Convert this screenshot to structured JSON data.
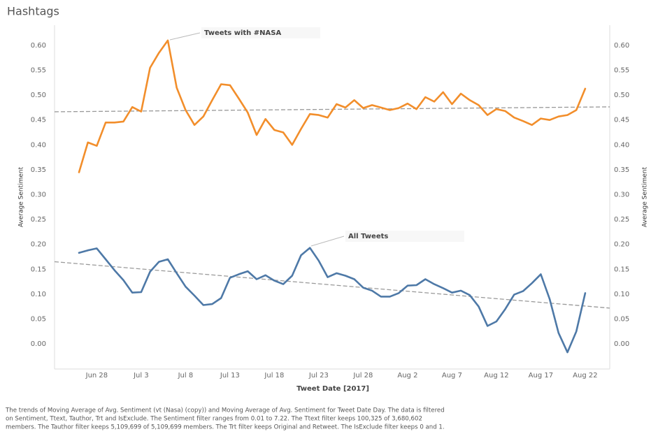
{
  "chart_data": {
    "type": "line",
    "title": "Hashtags",
    "x_label": "Tweet Date [2017]",
    "y_label": "Average Sentiment",
    "y2_label": "Average Sentiment",
    "categories": [
      null,
      null,
      "Jun 28",
      null,
      null,
      null,
      null,
      "Jul 3",
      null,
      null,
      null,
      null,
      "Jul 8",
      null,
      null,
      null,
      null,
      "Jul 13",
      null,
      null,
      null,
      null,
      "Jul 18",
      null,
      null,
      null,
      null,
      "Jul 23",
      null,
      null,
      null,
      null,
      "Jul 28",
      null,
      null,
      null,
      null,
      "Aug 2",
      null,
      null,
      null,
      null,
      "Aug 7",
      null,
      null,
      null,
      null,
      "Aug 12",
      null,
      null,
      null,
      null,
      "Aug 17",
      null,
      null,
      null,
      null,
      "Aug 22"
    ],
    "series": [
      {
        "name": "Tweets with #NASA",
        "color": "#f28e2b",
        "axis": "y2",
        "values": [
          0.345,
          0.405,
          0.398,
          0.445,
          0.445,
          0.447,
          0.476,
          0.467,
          0.555,
          0.585,
          0.61,
          0.515,
          0.47,
          0.44,
          0.457,
          0.49,
          0.522,
          0.52,
          0.493,
          0.465,
          0.42,
          0.452,
          0.43,
          0.425,
          0.4,
          0.432,
          0.462,
          0.46,
          0.455,
          0.482,
          0.475,
          0.49,
          0.474,
          0.48,
          0.475,
          0.47,
          0.474,
          0.483,
          0.472,
          0.496,
          0.487,
          0.506,
          0.482,
          0.503,
          0.49,
          0.48,
          0.46,
          0.472,
          0.468,
          0.455,
          0.448,
          0.44,
          0.453,
          0.45,
          0.457,
          0.46,
          0.47,
          0.513
        ],
        "trend": [
          0.467,
          0.476
        ]
      },
      {
        "name": "All Tweets",
        "color": "#4e79a7",
        "values": [
          0.183,
          0.188,
          0.192,
          0.17,
          0.148,
          0.128,
          0.103,
          0.104,
          0.145,
          0.165,
          0.17,
          0.142,
          0.115,
          0.097,
          0.078,
          0.08,
          0.092,
          0.133,
          0.14,
          0.146,
          0.13,
          0.138,
          0.127,
          0.12,
          0.137,
          0.178,
          0.193,
          0.167,
          0.134,
          0.142,
          0.137,
          0.13,
          0.113,
          0.107,
          0.095,
          0.095,
          0.102,
          0.117,
          0.118,
          0.13,
          0.12,
          0.112,
          0.103,
          0.107,
          0.098,
          0.075,
          0.036,
          0.045,
          0.07,
          0.099,
          0.106,
          0.122,
          0.14,
          0.09,
          0.022,
          -0.017,
          0.025,
          0.102
        ],
        "trend": [
          0.161,
          0.076
        ]
      }
    ],
    "ylim": [
      -0.05,
      0.64
    ],
    "yticks": [
      {
        "value": 0,
        "label": "0.00"
      },
      0.05,
      {
        "value": 0.1,
        "label": "0.10"
      },
      0.15,
      {
        "value": 0.2,
        "label": "0.20"
      },
      0.25,
      {
        "value": 0.3,
        "label": "0.30"
      },
      0.35,
      {
        "value": 0.4,
        "label": "0.40"
      },
      0.45,
      {
        "value": 0.5,
        "label": "0.50"
      },
      0.55,
      {
        "value": 0.6,
        "label": "0.60"
      }
    ],
    "y2lim": [
      -0.05,
      0.64
    ],
    "y2ticks": [
      {
        "value": 0,
        "label": "0.00"
      },
      0.05,
      {
        "value": 0.1,
        "label": "0.10"
      },
      0.15,
      {
        "value": 0.2,
        "label": "0.20"
      },
      0.25,
      {
        "value": 0.3,
        "label": "0.30"
      },
      0.35,
      {
        "value": 0.4,
        "label": "0.40"
      },
      0.45,
      {
        "value": 0.5,
        "label": "0.50"
      },
      0.55,
      {
        "value": 0.6,
        "label": "0.60"
      }
    ],
    "grid": false,
    "caption": [
      "The trends of Moving Average of Avg. Sentiment (vt (Nasa) (copy)) and Moving Average of Avg. Sentiment for Tweet Date Day. The data is filtered",
      "on Sentiment, Ttext, Tauthor, Trt and IsExclude. The Sentiment filter ranges from 0.01 to 7.22. The Ttext filter keeps 100,325 of 3,680,602",
      "members. The Tauthor filter keeps 5,109,699 of 5,109,699 members. The Trt filter keeps Original and Retweet. The IsExclude filter keeps 0 and 1."
    ]
  }
}
